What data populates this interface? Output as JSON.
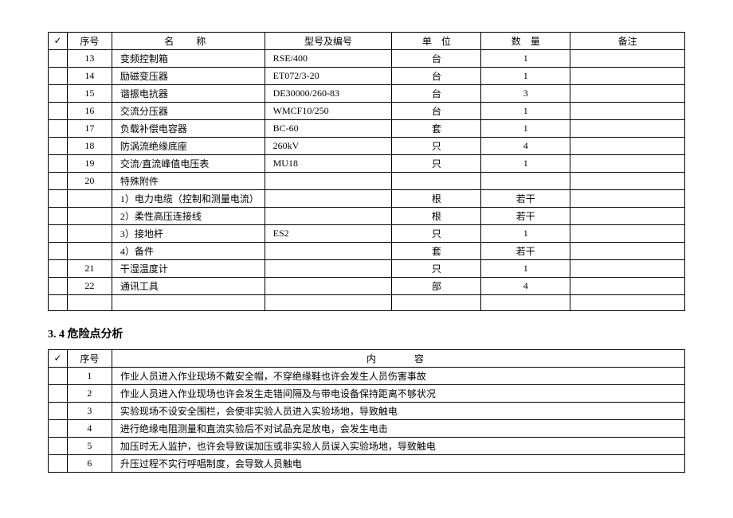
{
  "table1": {
    "headers": {
      "check": "✓",
      "seq": "序号",
      "name": "名　称",
      "model": "型号及编号",
      "unit": "单　位",
      "qty": "数　量",
      "remark": "备注"
    },
    "rows": [
      {
        "seq": "13",
        "name": "变频控制箱",
        "model": "RSE/400",
        "unit": "台",
        "qty": "1",
        "remark": ""
      },
      {
        "seq": "14",
        "name": "励磁变压器",
        "model": "ET072/3-20",
        "unit": "台",
        "qty": "1",
        "remark": ""
      },
      {
        "seq": "15",
        "name": "谐振电抗器",
        "model": "DE30000/260-83",
        "unit": "台",
        "qty": "3",
        "remark": ""
      },
      {
        "seq": "16",
        "name": "交流分压器",
        "model": "WMCF10/250",
        "unit": "台",
        "qty": "1",
        "remark": ""
      },
      {
        "seq": "17",
        "name": "负载补偿电容器",
        "model": "BC-60",
        "unit": "套",
        "qty": "1",
        "remark": ""
      },
      {
        "seq": "18",
        "name": "防涡流绝缘底座",
        "model": "260kV",
        "unit": "只",
        "qty": "4",
        "remark": ""
      },
      {
        "seq": "19",
        "name": "交流/直流峰值电压表",
        "model": "MU18",
        "unit": "只",
        "qty": "1",
        "remark": ""
      },
      {
        "seq": "20",
        "name": "特殊附件",
        "model": "",
        "unit": "",
        "qty": "",
        "remark": ""
      },
      {
        "seq": "",
        "name": "1）电力电缆（控制和测量电流）",
        "model": "",
        "unit": "根",
        "qty": "若干",
        "remark": ""
      },
      {
        "seq": "",
        "name": "2）柔性高压连接线",
        "model": "",
        "unit": "根",
        "qty": "若干",
        "remark": ""
      },
      {
        "seq": "",
        "name": "3）接地杆",
        "model": "ES2",
        "unit": "只",
        "qty": "1",
        "remark": ""
      },
      {
        "seq": "",
        "name": "4）备件",
        "model": "",
        "unit": "套",
        "qty": "若干",
        "remark": ""
      },
      {
        "seq": "21",
        "name": "干湿温度计",
        "model": "",
        "unit": "只",
        "qty": "1",
        "remark": ""
      },
      {
        "seq": "22",
        "name": "通讯工具",
        "model": "",
        "unit": "部",
        "qty": "4",
        "remark": ""
      },
      {
        "seq": "",
        "name": "",
        "model": "",
        "unit": "",
        "qty": "",
        "remark": ""
      }
    ]
  },
  "sectionTitle": "3. 4 危险点分析",
  "table2": {
    "headers": {
      "check": "✓",
      "seq": "序号",
      "content": "内　　容"
    },
    "rows": [
      {
        "seq": "1",
        "content": "作业人员进入作业现场不戴安全帽，不穿绝缘鞋也许会发生人员伤害事故"
      },
      {
        "seq": "2",
        "content": "作业人员进入作业现场也许会发生走错间隔及与带电设备保持距离不够状况"
      },
      {
        "seq": "3",
        "content": "实验现场不设安全围栏，会使非实验人员进入实验场地，导致触电"
      },
      {
        "seq": "4",
        "content": "进行绝缘电阻测量和直流实验后不对试品充足放电，会发生电击"
      },
      {
        "seq": "5",
        "content": "加压时无人监护，也许会导致误加压或非实验人员误入实验场地，导致触电"
      },
      {
        "seq": "6",
        "content": "升压过程不实行呼唱制度，会导致人员触电"
      }
    ]
  }
}
